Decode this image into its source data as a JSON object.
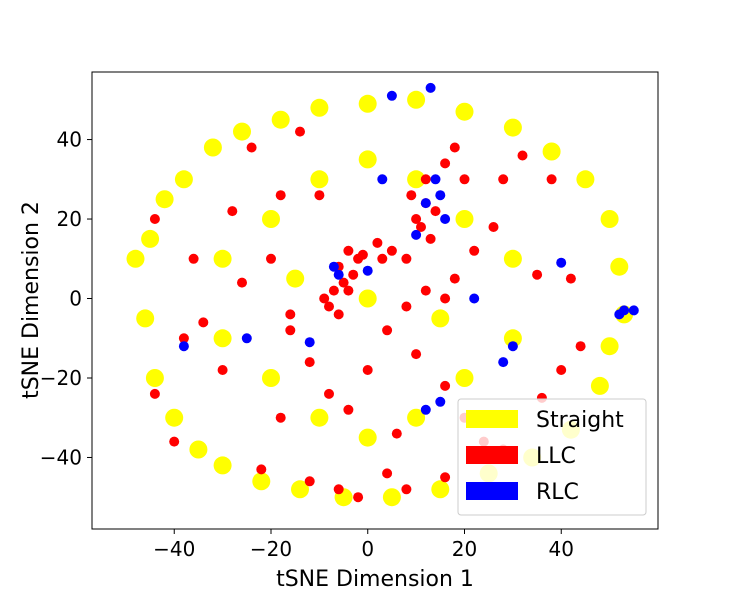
{
  "chart_data": {
    "type": "scatter",
    "title": "",
    "xlabel": "tSNE Dimension 1",
    "ylabel": "tSNE Dimension 2",
    "xlim": [
      -57,
      60
    ],
    "ylim": [
      -58,
      57
    ],
    "xticks": [
      -40,
      -20,
      0,
      20,
      40
    ],
    "yticks": [
      -40,
      -20,
      0,
      20,
      40
    ],
    "tick_labels_x": [
      "−40",
      "−20",
      "0",
      "20",
      "40"
    ],
    "tick_labels_y": [
      "−40",
      "−20",
      "0",
      "20",
      "40"
    ],
    "grid": false,
    "legend_position": "bottom-right",
    "series": [
      {
        "name": "Straight",
        "color": "#ffff00",
        "points": [
          [
            -48,
            10
          ],
          [
            -46,
            -5
          ],
          [
            -45,
            15
          ],
          [
            -44,
            -20
          ],
          [
            -42,
            25
          ],
          [
            -40,
            -30
          ],
          [
            -38,
            30
          ],
          [
            -35,
            -38
          ],
          [
            -32,
            38
          ],
          [
            -30,
            -42
          ],
          [
            -26,
            42
          ],
          [
            -22,
            -46
          ],
          [
            -18,
            45
          ],
          [
            -14,
            -48
          ],
          [
            -10,
            48
          ],
          [
            -5,
            -50
          ],
          [
            0,
            49
          ],
          [
            5,
            -50
          ],
          [
            10,
            50
          ],
          [
            15,
            -48
          ],
          [
            20,
            47
          ],
          [
            25,
            -44
          ],
          [
            30,
            43
          ],
          [
            34,
            -40
          ],
          [
            38,
            37
          ],
          [
            42,
            -33
          ],
          [
            45,
            30
          ],
          [
            48,
            -22
          ],
          [
            50,
            20
          ],
          [
            52,
            8
          ],
          [
            53,
            -4
          ],
          [
            50,
            -12
          ],
          [
            -30,
            10
          ],
          [
            -20,
            20
          ],
          [
            -10,
            30
          ],
          [
            0,
            35
          ],
          [
            10,
            30
          ],
          [
            20,
            20
          ],
          [
            30,
            10
          ],
          [
            -30,
            -10
          ],
          [
            -20,
            -20
          ],
          [
            -10,
            -30
          ],
          [
            0,
            -35
          ],
          [
            10,
            -30
          ],
          [
            20,
            -20
          ],
          [
            30,
            -10
          ],
          [
            0,
            0
          ],
          [
            -15,
            5
          ],
          [
            15,
            -5
          ]
        ]
      },
      {
        "name": "LLC",
        "color": "#ff0000",
        "points": [
          [
            -4,
            12
          ],
          [
            -2,
            10
          ],
          [
            -6,
            8
          ],
          [
            -3,
            6
          ],
          [
            -1,
            11
          ],
          [
            -5,
            4
          ],
          [
            -7,
            2
          ],
          [
            -8,
            -2
          ],
          [
            -6,
            -4
          ],
          [
            -9,
            0
          ],
          [
            -4,
            2
          ],
          [
            3,
            10
          ],
          [
            5,
            12
          ],
          [
            2,
            14
          ],
          [
            10,
            20
          ],
          [
            12,
            24
          ],
          [
            11,
            18
          ],
          [
            14,
            22
          ],
          [
            9,
            26
          ],
          [
            12,
            30
          ],
          [
            16,
            34
          ],
          [
            18,
            38
          ],
          [
            13,
            15
          ],
          [
            8,
            10
          ],
          [
            -24,
            38
          ],
          [
            -14,
            42
          ],
          [
            -28,
            22
          ],
          [
            -44,
            20
          ],
          [
            -40,
            -36
          ],
          [
            -44,
            -24
          ],
          [
            -30,
            -18
          ],
          [
            -22,
            -43
          ],
          [
            -18,
            -30
          ],
          [
            -16,
            -8
          ],
          [
            -12,
            -16
          ],
          [
            -8,
            -24
          ],
          [
            -4,
            -28
          ],
          [
            0,
            -18
          ],
          [
            4,
            -8
          ],
          [
            10,
            -14
          ],
          [
            16,
            -22
          ],
          [
            20,
            -30
          ],
          [
            24,
            -36
          ],
          [
            28,
            -38
          ],
          [
            36,
            -25
          ],
          [
            40,
            -18
          ],
          [
            42,
            5
          ],
          [
            35,
            6
          ],
          [
            38,
            30
          ],
          [
            32,
            36
          ],
          [
            28,
            30
          ],
          [
            26,
            18
          ],
          [
            22,
            12
          ],
          [
            20,
            30
          ],
          [
            18,
            5
          ],
          [
            16,
            0
          ],
          [
            12,
            2
          ],
          [
            8,
            -2
          ],
          [
            -20,
            10
          ],
          [
            -26,
            4
          ],
          [
            -34,
            -6
          ],
          [
            -16,
            -4
          ],
          [
            -12,
            -46
          ],
          [
            -6,
            -48
          ],
          [
            -2,
            -50
          ],
          [
            4,
            -44
          ],
          [
            8,
            -48
          ],
          [
            16,
            -45
          ],
          [
            22,
            -40
          ],
          [
            -10,
            26
          ],
          [
            -18,
            26
          ],
          [
            -36,
            10
          ],
          [
            -38,
            -10
          ],
          [
            44,
            -12
          ],
          [
            30,
            -30
          ],
          [
            6,
            -34
          ]
        ]
      },
      {
        "name": "RLC",
        "color": "#0000ff",
        "points": [
          [
            5,
            51
          ],
          [
            13,
            53
          ],
          [
            14,
            30
          ],
          [
            15,
            26
          ],
          [
            12,
            24
          ],
          [
            10,
            16
          ],
          [
            16,
            20
          ],
          [
            3,
            30
          ],
          [
            -7,
            8
          ],
          [
            -6,
            6
          ],
          [
            0,
            7
          ],
          [
            22,
            0
          ],
          [
            40,
            9
          ],
          [
            52,
            -4
          ],
          [
            53,
            -3
          ],
          [
            55,
            -3
          ],
          [
            -12,
            -11
          ],
          [
            -25,
            -10
          ],
          [
            15,
            -26
          ],
          [
            12,
            -28
          ],
          [
            30,
            -12
          ],
          [
            28,
            -16
          ],
          [
            -38,
            -12
          ]
        ]
      }
    ]
  }
}
